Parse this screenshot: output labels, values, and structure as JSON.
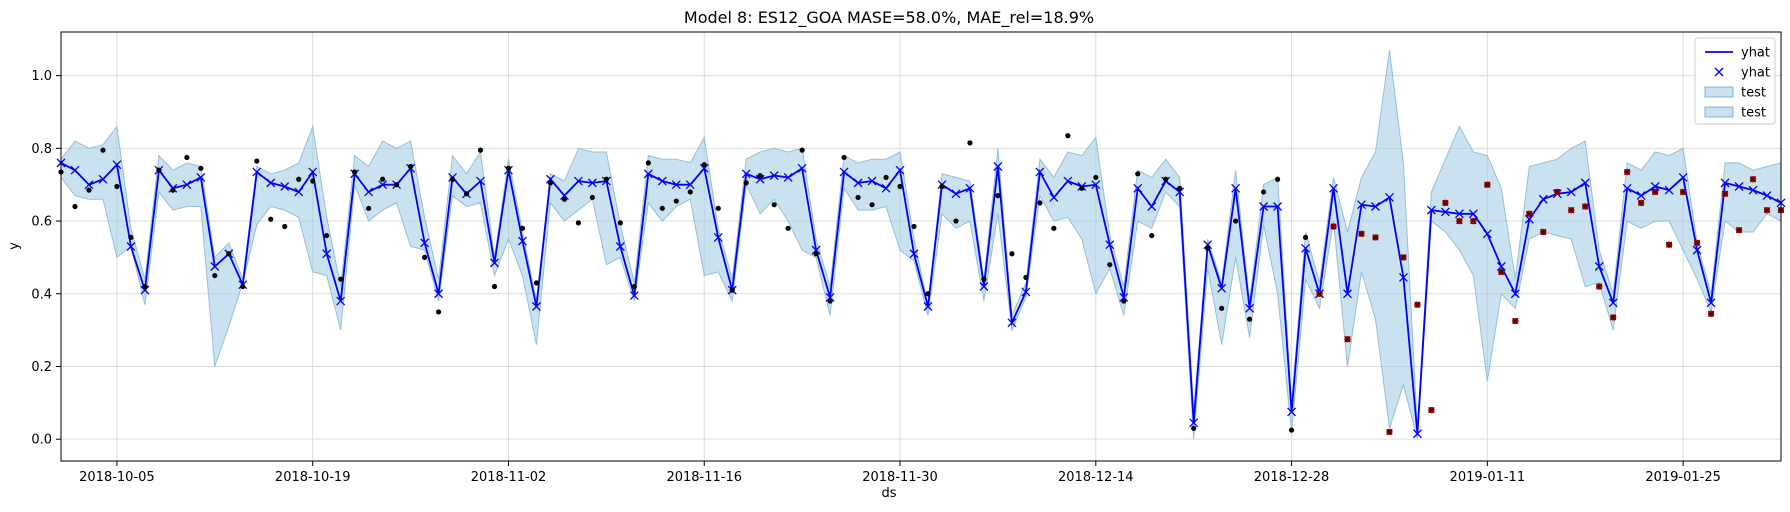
{
  "chart_data": {
    "type": "line",
    "title": "Model 8: ES12_GOA MASE=58.0%, MAE_rel=18.9%",
    "xlabel": "ds",
    "ylabel": "y",
    "xlim": [
      "2018-10-01",
      "2019-02-01"
    ],
    "ylim": [
      -0.06,
      1.12
    ],
    "grid": true,
    "legend_placement": "top-right",
    "x_ticks": [
      "2018-10-05",
      "2018-10-19",
      "2018-11-02",
      "2018-11-16",
      "2018-11-30",
      "2018-12-14",
      "2018-12-28",
      "2019-01-11",
      "2019-01-25"
    ],
    "y_ticks": [
      "0.0",
      "0.2",
      "0.4",
      "0.6",
      "0.8",
      "1.0"
    ],
    "legend": [
      "yhat",
      "yhat",
      "test",
      "test"
    ],
    "colors": {
      "yhat": "#0000ff",
      "band": "#9ecae1",
      "band_edge": "#7fb3d5",
      "train_points": "#000000",
      "test_points": "#b00000"
    },
    "series": [
      {
        "name": "yhat",
        "x": [
          "2018-10-01",
          "2018-10-02",
          "2018-10-03",
          "2018-10-04",
          "2018-10-05",
          "2018-10-06",
          "2018-10-07",
          "2018-10-08",
          "2018-10-09",
          "2018-10-10",
          "2018-10-11",
          "2018-10-12",
          "2018-10-13",
          "2018-10-14",
          "2018-10-15",
          "2018-10-16",
          "2018-10-17",
          "2018-10-18",
          "2018-10-19",
          "2018-10-20",
          "2018-10-21",
          "2018-10-22",
          "2018-10-23",
          "2018-10-24",
          "2018-10-25",
          "2018-10-26",
          "2018-10-27",
          "2018-10-28",
          "2018-10-29",
          "2018-10-30",
          "2018-10-31",
          "2018-11-01",
          "2018-11-02",
          "2018-11-03",
          "2018-11-04",
          "2018-11-05",
          "2018-11-06",
          "2018-11-07",
          "2018-11-08",
          "2018-11-09",
          "2018-11-10",
          "2018-11-11",
          "2018-11-12",
          "2018-11-13",
          "2018-11-14",
          "2018-11-15",
          "2018-11-16",
          "2018-11-17",
          "2018-11-18",
          "2018-11-19",
          "2018-11-20",
          "2018-11-21",
          "2018-11-22",
          "2018-11-23",
          "2018-11-24",
          "2018-11-25",
          "2018-11-26",
          "2018-11-27",
          "2018-11-28",
          "2018-11-29",
          "2018-11-30",
          "2018-12-01",
          "2018-12-02",
          "2018-12-03",
          "2018-12-04",
          "2018-12-05",
          "2018-12-06",
          "2018-12-07",
          "2018-12-08",
          "2018-12-09",
          "2018-12-10",
          "2018-12-11",
          "2018-12-12",
          "2018-12-13",
          "2018-12-14",
          "2018-12-15",
          "2018-12-16",
          "2018-12-17",
          "2018-12-18",
          "2018-12-19",
          "2018-12-20",
          "2018-12-21",
          "2018-12-22",
          "2018-12-23",
          "2018-12-24",
          "2018-12-25",
          "2018-12-26",
          "2018-12-27",
          "2018-12-28",
          "2018-12-29",
          "2018-12-30",
          "2018-12-31",
          "2019-01-01",
          "2019-01-02",
          "2019-01-03",
          "2019-01-04",
          "2019-01-05",
          "2019-01-06",
          "2019-01-07",
          "2019-01-08",
          "2019-01-09",
          "2019-01-10",
          "2019-01-11",
          "2019-01-12",
          "2019-01-13",
          "2019-01-14",
          "2019-01-15",
          "2019-01-16",
          "2019-01-17",
          "2019-01-18",
          "2019-01-19",
          "2019-01-20",
          "2019-01-21",
          "2019-01-22",
          "2019-01-23",
          "2019-01-24",
          "2019-01-25",
          "2019-01-26",
          "2019-01-27",
          "2019-01-28",
          "2019-01-29",
          "2019-01-30",
          "2019-01-31",
          "2019-02-01"
        ],
        "values": [
          0.76,
          0.74,
          0.7,
          0.715,
          0.755,
          0.53,
          0.41,
          0.74,
          0.69,
          0.7,
          0.72,
          0.475,
          0.51,
          0.425,
          0.735,
          0.705,
          0.695,
          0.68,
          0.735,
          0.51,
          0.38,
          0.73,
          0.68,
          0.7,
          0.7,
          0.745,
          0.54,
          0.4,
          0.72,
          0.675,
          0.71,
          0.485,
          0.74,
          0.545,
          0.365,
          0.715,
          0.67,
          0.71,
          0.705,
          0.71,
          0.53,
          0.395,
          0.73,
          0.71,
          0.7,
          0.7,
          0.745,
          0.555,
          0.41,
          0.73,
          0.715,
          0.725,
          0.72,
          0.745,
          0.52,
          0.39,
          0.735,
          0.705,
          0.71,
          0.69,
          0.74,
          0.51,
          0.365,
          0.7,
          0.675,
          0.69,
          0.42,
          0.75,
          0.32,
          0.405,
          0.735,
          0.665,
          0.71,
          0.695,
          0.7,
          0.535,
          0.39,
          0.69,
          0.64,
          0.71,
          0.68,
          0.045,
          0.535,
          0.415,
          0.69,
          0.36,
          0.64,
          0.64,
          0.075,
          0.525,
          0.4,
          0.69,
          0.4,
          0.645,
          0.64,
          0.665,
          0.445,
          0.015,
          0.63,
          0.625,
          0.62,
          0.62,
          0.565,
          0.475,
          0.4,
          0.605,
          0.66,
          0.675,
          0.68,
          0.705,
          0.475,
          0.375,
          0.69,
          0.67,
          0.695,
          0.685,
          0.72,
          0.52,
          0.375,
          0.705,
          0.695,
          0.685,
          0.67,
          0.65
        ]
      },
      {
        "name": "test",
        "x": [
          "2018-10-01",
          "2018-10-02",
          "2018-10-03",
          "2018-10-04",
          "2018-10-05",
          "2018-10-06",
          "2018-10-07",
          "2018-10-08",
          "2018-10-09",
          "2018-10-10",
          "2018-10-11",
          "2018-10-12",
          "2018-10-13",
          "2018-10-14",
          "2018-10-15",
          "2018-10-16",
          "2018-10-17",
          "2018-10-18",
          "2018-10-19",
          "2018-10-20",
          "2018-10-21",
          "2018-10-22",
          "2018-10-23",
          "2018-10-24",
          "2018-10-25",
          "2018-10-26",
          "2018-10-27",
          "2018-10-28",
          "2018-10-29",
          "2018-10-30",
          "2018-10-31",
          "2018-11-01",
          "2018-11-02",
          "2018-11-03",
          "2018-11-04",
          "2018-11-05",
          "2018-11-06",
          "2018-11-07",
          "2018-11-08",
          "2018-11-09",
          "2018-11-10",
          "2018-11-11",
          "2018-11-12",
          "2018-11-13",
          "2018-11-14",
          "2018-11-15",
          "2018-11-16",
          "2018-11-17",
          "2018-11-18",
          "2018-11-19",
          "2018-11-20",
          "2018-11-21",
          "2018-11-22",
          "2018-11-23",
          "2018-11-24",
          "2018-11-25",
          "2018-11-26",
          "2018-11-27",
          "2018-11-28",
          "2018-11-29",
          "2018-11-30",
          "2018-12-01",
          "2018-12-02",
          "2018-12-03",
          "2018-12-04",
          "2018-12-05",
          "2018-12-06",
          "2018-12-07",
          "2018-12-08",
          "2018-12-09",
          "2018-12-10",
          "2018-12-11",
          "2018-12-12",
          "2018-12-13",
          "2018-12-14",
          "2018-12-15",
          "2018-12-16",
          "2018-12-17",
          "2018-12-18",
          "2018-12-19",
          "2018-12-20",
          "2018-12-21",
          "2018-12-22",
          "2018-12-23",
          "2018-12-24",
          "2018-12-25",
          "2018-12-26",
          "2018-12-27",
          "2018-12-28",
          "2018-12-29",
          "2018-12-30",
          "2018-12-31",
          "2019-01-01",
          "2019-01-02",
          "2019-01-03",
          "2019-01-04",
          "2019-01-05",
          "2019-01-06",
          "2019-01-07",
          "2019-01-08",
          "2019-01-09",
          "2019-01-10",
          "2019-01-11",
          "2019-01-12",
          "2019-01-13",
          "2019-01-14",
          "2019-01-15",
          "2019-01-16",
          "2019-01-17",
          "2019-01-18",
          "2019-01-19",
          "2019-01-20",
          "2019-01-21",
          "2019-01-22",
          "2019-01-23",
          "2019-01-24",
          "2019-01-25",
          "2019-01-26",
          "2019-01-27",
          "2019-01-28",
          "2019-01-29",
          "2019-01-30",
          "2019-01-31",
          "2019-02-01"
        ],
        "lower": [
          0.72,
          0.67,
          0.66,
          0.66,
          0.5,
          0.53,
          0.37,
          0.68,
          0.63,
          0.64,
          0.64,
          0.2,
          0.31,
          0.43,
          0.59,
          0.64,
          0.63,
          0.61,
          0.46,
          0.45,
          0.3,
          0.7,
          0.6,
          0.63,
          0.65,
          0.53,
          0.52,
          0.38,
          0.67,
          0.64,
          0.65,
          0.45,
          0.55,
          0.45,
          0.26,
          0.65,
          0.6,
          0.63,
          0.66,
          0.48,
          0.5,
          0.38,
          0.65,
          0.6,
          0.64,
          0.66,
          0.45,
          0.46,
          0.38,
          0.7,
          0.62,
          0.66,
          0.6,
          0.52,
          0.5,
          0.34,
          0.69,
          0.63,
          0.63,
          0.64,
          0.52,
          0.49,
          0.34,
          0.62,
          0.58,
          0.6,
          0.38,
          0.62,
          0.3,
          0.39,
          0.67,
          0.6,
          0.61,
          0.55,
          0.4,
          0.47,
          0.34,
          0.6,
          0.58,
          0.68,
          0.64,
          0.0,
          0.47,
          0.26,
          0.5,
          0.28,
          0.59,
          0.4,
          0.02,
          0.44,
          0.36,
          0.6,
          0.2,
          0.46,
          0.33,
          0.03,
          0.15,
          0.0,
          0.6,
          0.57,
          0.52,
          0.45,
          0.16,
          0.4,
          0.36,
          0.55,
          0.57,
          0.56,
          0.55,
          0.42,
          0.43,
          0.3,
          0.6,
          0.58,
          0.6,
          0.6,
          0.52,
          0.44,
          0.35,
          0.6,
          0.57,
          0.57,
          0.62,
          0.6
        ],
        "upper": [
          0.77,
          0.82,
          0.8,
          0.81,
          0.86,
          0.58,
          0.44,
          0.78,
          0.74,
          0.76,
          0.75,
          0.5,
          0.54,
          0.44,
          0.75,
          0.73,
          0.74,
          0.76,
          0.86,
          0.61,
          0.42,
          0.78,
          0.75,
          0.82,
          0.8,
          0.82,
          0.61,
          0.44,
          0.78,
          0.73,
          0.79,
          0.5,
          0.77,
          0.57,
          0.38,
          0.73,
          0.71,
          0.8,
          0.79,
          0.79,
          0.59,
          0.43,
          0.78,
          0.77,
          0.77,
          0.76,
          0.83,
          0.58,
          0.44,
          0.77,
          0.79,
          0.8,
          0.79,
          0.8,
          0.55,
          0.42,
          0.78,
          0.76,
          0.77,
          0.77,
          0.79,
          0.55,
          0.37,
          0.73,
          0.72,
          0.71,
          0.44,
          0.8,
          0.34,
          0.43,
          0.77,
          0.72,
          0.79,
          0.78,
          0.83,
          0.56,
          0.42,
          0.74,
          0.72,
          0.77,
          0.72,
          0.08,
          0.55,
          0.43,
          0.74,
          0.38,
          0.7,
          0.72,
          0.1,
          0.57,
          0.43,
          0.72,
          0.57,
          0.72,
          0.79,
          1.07,
          0.76,
          0.03,
          0.68,
          0.77,
          0.86,
          0.79,
          0.78,
          0.69,
          0.44,
          0.75,
          0.76,
          0.77,
          0.8,
          0.82,
          0.52,
          0.4,
          0.76,
          0.74,
          0.79,
          0.78,
          0.8,
          0.54,
          0.4,
          0.76,
          0.76,
          0.74,
          0.75,
          0.76
        ]
      },
      {
        "name": "",
        "marker": "dot",
        "x": [
          "2018-10-01",
          "2018-10-02",
          "2018-10-03",
          "2018-10-04",
          "2018-10-05",
          "2018-10-06",
          "2018-10-07",
          "2018-10-08",
          "2018-10-09",
          "2018-10-10",
          "2018-10-11",
          "2018-10-12",
          "2018-10-13",
          "2018-10-14",
          "2018-10-15",
          "2018-10-16",
          "2018-10-17",
          "2018-10-18",
          "2018-10-19",
          "2018-10-20",
          "2018-10-21",
          "2018-10-22",
          "2018-10-23",
          "2018-10-24",
          "2018-10-25",
          "2018-10-26",
          "2018-10-27",
          "2018-10-28",
          "2018-10-29",
          "2018-10-30",
          "2018-10-31",
          "2018-11-01",
          "2018-11-02",
          "2018-11-03",
          "2018-11-04",
          "2018-11-05",
          "2018-11-06",
          "2018-11-07",
          "2018-11-08",
          "2018-11-09",
          "2018-11-10",
          "2018-11-11",
          "2018-11-12",
          "2018-11-13",
          "2018-11-14",
          "2018-11-15",
          "2018-11-16",
          "2018-11-17",
          "2018-11-18",
          "2018-11-19",
          "2018-11-20",
          "2018-11-21",
          "2018-11-22",
          "2018-11-23",
          "2018-11-24",
          "2018-11-25",
          "2018-11-26",
          "2018-11-27",
          "2018-11-28",
          "2018-11-29",
          "2018-11-30",
          "2018-12-01",
          "2018-12-02",
          "2018-12-03",
          "2018-12-04",
          "2018-12-05",
          "2018-12-06",
          "2018-12-07",
          "2018-12-08",
          "2018-12-09",
          "2018-12-10",
          "2018-12-11",
          "2018-12-12",
          "2018-12-13",
          "2018-12-14",
          "2018-12-15",
          "2018-12-16",
          "2018-12-17",
          "2018-12-18",
          "2018-12-19",
          "2018-12-20",
          "2018-12-21",
          "2018-12-22",
          "2018-12-23",
          "2018-12-24",
          "2018-12-25",
          "2018-12-26",
          "2018-12-27",
          "2018-12-28",
          "2018-12-29"
        ],
        "values": [
          0.735,
          0.64,
          0.685,
          0.795,
          0.695,
          0.555,
          0.42,
          0.74,
          0.685,
          0.775,
          0.745,
          0.45,
          0.51,
          0.42,
          0.765,
          0.605,
          0.585,
          0.715,
          0.71,
          0.56,
          0.44,
          0.735,
          0.635,
          0.715,
          0.7,
          0.75,
          0.5,
          0.35,
          0.715,
          0.675,
          0.795,
          0.42,
          0.745,
          0.58,
          0.43,
          0.705,
          0.66,
          0.595,
          0.665,
          0.715,
          0.595,
          0.42,
          0.76,
          0.635,
          0.655,
          0.68,
          0.755,
          0.635,
          0.41,
          0.705,
          0.725,
          0.645,
          0.58,
          0.795,
          0.51,
          0.38,
          0.775,
          0.665,
          0.645,
          0.72,
          0.695,
          0.585,
          0.4,
          0.695,
          0.6,
          0.815,
          0.44,
          0.67,
          0.51,
          0.445,
          0.65,
          0.58,
          0.835,
          0.69,
          0.72,
          0.48,
          0.38,
          0.73,
          0.56,
          0.715,
          0.69,
          0.03,
          0.525,
          0.36,
          0.6,
          0.33,
          0.68,
          0.715,
          0.025,
          0.555
        ]
      },
      {
        "name": "",
        "marker": "dot",
        "x": [
          "2018-12-30",
          "2018-12-31",
          "2019-01-01",
          "2019-01-02",
          "2019-01-03",
          "2019-01-04",
          "2019-01-05",
          "2019-01-06",
          "2019-01-07",
          "2019-01-08",
          "2019-01-09",
          "2019-01-10",
          "2019-01-11",
          "2019-01-12",
          "2019-01-13",
          "2019-01-14",
          "2019-01-15",
          "2019-01-16",
          "2019-01-17",
          "2019-01-18",
          "2019-01-19",
          "2019-01-20",
          "2019-01-21",
          "2019-01-22",
          "2019-01-23",
          "2019-01-24",
          "2019-01-25",
          "2019-01-26",
          "2019-01-27",
          "2019-01-28",
          "2019-01-29",
          "2019-01-30",
          "2019-01-31",
          "2019-02-01"
        ],
        "values": [
          0.4,
          0.585,
          0.275,
          0.565,
          0.555,
          0.02,
          0.5,
          0.37,
          0.08,
          0.65,
          0.6,
          0.6,
          0.7,
          0.46,
          0.325,
          0.62,
          0.57,
          0.68,
          0.63,
          0.64,
          0.42,
          0.335,
          0.735,
          0.65,
          0.68,
          0.535,
          0.68,
          0.54,
          0.345,
          0.675,
          0.575,
          0.715,
          0.63,
          0.63
        ]
      }
    ]
  }
}
